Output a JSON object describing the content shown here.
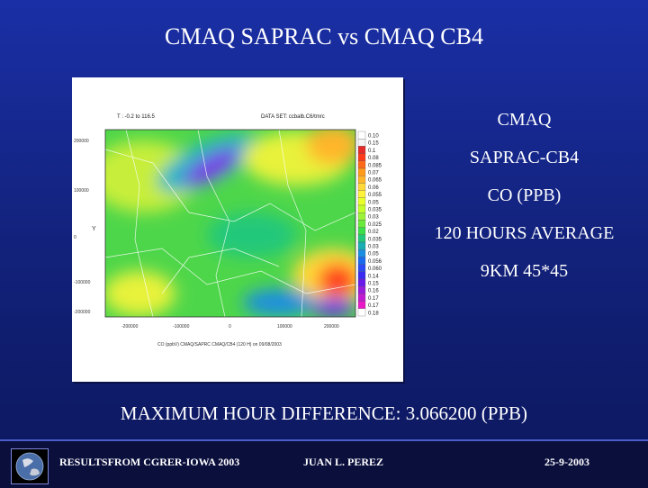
{
  "slide": {
    "title": "CMAQ SAPRAC vs CMAQ CB4",
    "side_lines": [
      "CMAQ",
      "SAPRAC-CB4",
      "CO (PPB)",
      "120 HOURS AVERAGE",
      "9KM 45*45"
    ],
    "max_diff": "MAXIMUM HOUR DIFFERENCE: 3.066200   (PPB)"
  },
  "footer": {
    "org": "RESULTSFROM CGRER-IOWA 2003",
    "author": "JUAN L. PEREZ",
    "date": "25-9-2003"
  },
  "map": {
    "top_left_text": "T : -0.2 to 116.5",
    "top_right_text": "DATA SET: ccbalb.C6/tmrc",
    "y_label": "Y",
    "y_ticks": [
      "200000",
      "100000",
      "0",
      "-100000",
      "-200000"
    ],
    "x_ticks": [
      "-200000",
      "-100000",
      "0",
      "100000",
      "200000"
    ],
    "x_footer": "CO (ppbV) CMAQ/SAPRC CMAQ/CB4 (120 H) on 09/08/2003",
    "legend_values": [
      "0.10",
      "0.15",
      "0.1",
      "0.08",
      "0.085",
      "0.07",
      "0.065",
      "0.06",
      "0.055",
      "0.05",
      "0.035",
      "0.03",
      "0.025",
      "0.02",
      "0.035",
      "0.03",
      "0.05",
      "0.056",
      "0.060",
      "0.14",
      "0.15",
      "0.16",
      "0.17",
      "0.17",
      "0.18"
    ],
    "legend_colors": [
      "#ffffff",
      "#f4f4f4",
      "#e62a2a",
      "#ff3a1a",
      "#ff6a1a",
      "#ff9a1a",
      "#ffb52a",
      "#ffd93a",
      "#fff23a",
      "#e8ff2a",
      "#c4ff2a",
      "#9cf33a",
      "#6aea3a",
      "#3ade4a",
      "#22c87a",
      "#1aaeb2",
      "#1a8ee0",
      "#1a6af0",
      "#2a4af6",
      "#3a2af2",
      "#6a1ae8",
      "#9a1adc",
      "#c21ad2",
      "#ea1ac8",
      "#ffffff"
    ]
  }
}
